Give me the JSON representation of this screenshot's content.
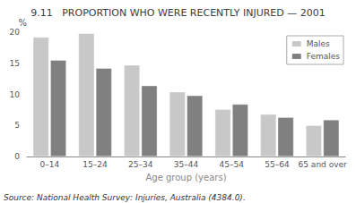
{
  "chart_data": {
    "type": "bar",
    "title": "9.11   PROPORTION WHO WERE RECENTLY INJURED — 2001",
    "xlabel": "Age group (years)",
    "ylabel": "%",
    "annotations": [
      "Source: National Health Survey: Injuries, Australia (4384.0)."
    ],
    "categories": [
      "0–14",
      "15–24",
      "25–34",
      "35–44",
      "45–54",
      "55–64",
      "65 and over"
    ],
    "series": [
      {
        "name": "Males",
        "color": "#c8c8c8",
        "values": [
          19.2,
          19.8,
          14.7,
          10.4,
          7.6,
          6.8,
          5.0
        ]
      },
      {
        "name": "Females",
        "color": "#808080",
        "values": [
          15.5,
          14.2,
          11.4,
          9.8,
          8.4,
          6.3,
          5.9
        ]
      }
    ],
    "ylim": [
      0,
      20
    ],
    "yticks": [
      0,
      5,
      10,
      15,
      20
    ],
    "grid": false,
    "legend": "upper right"
  }
}
